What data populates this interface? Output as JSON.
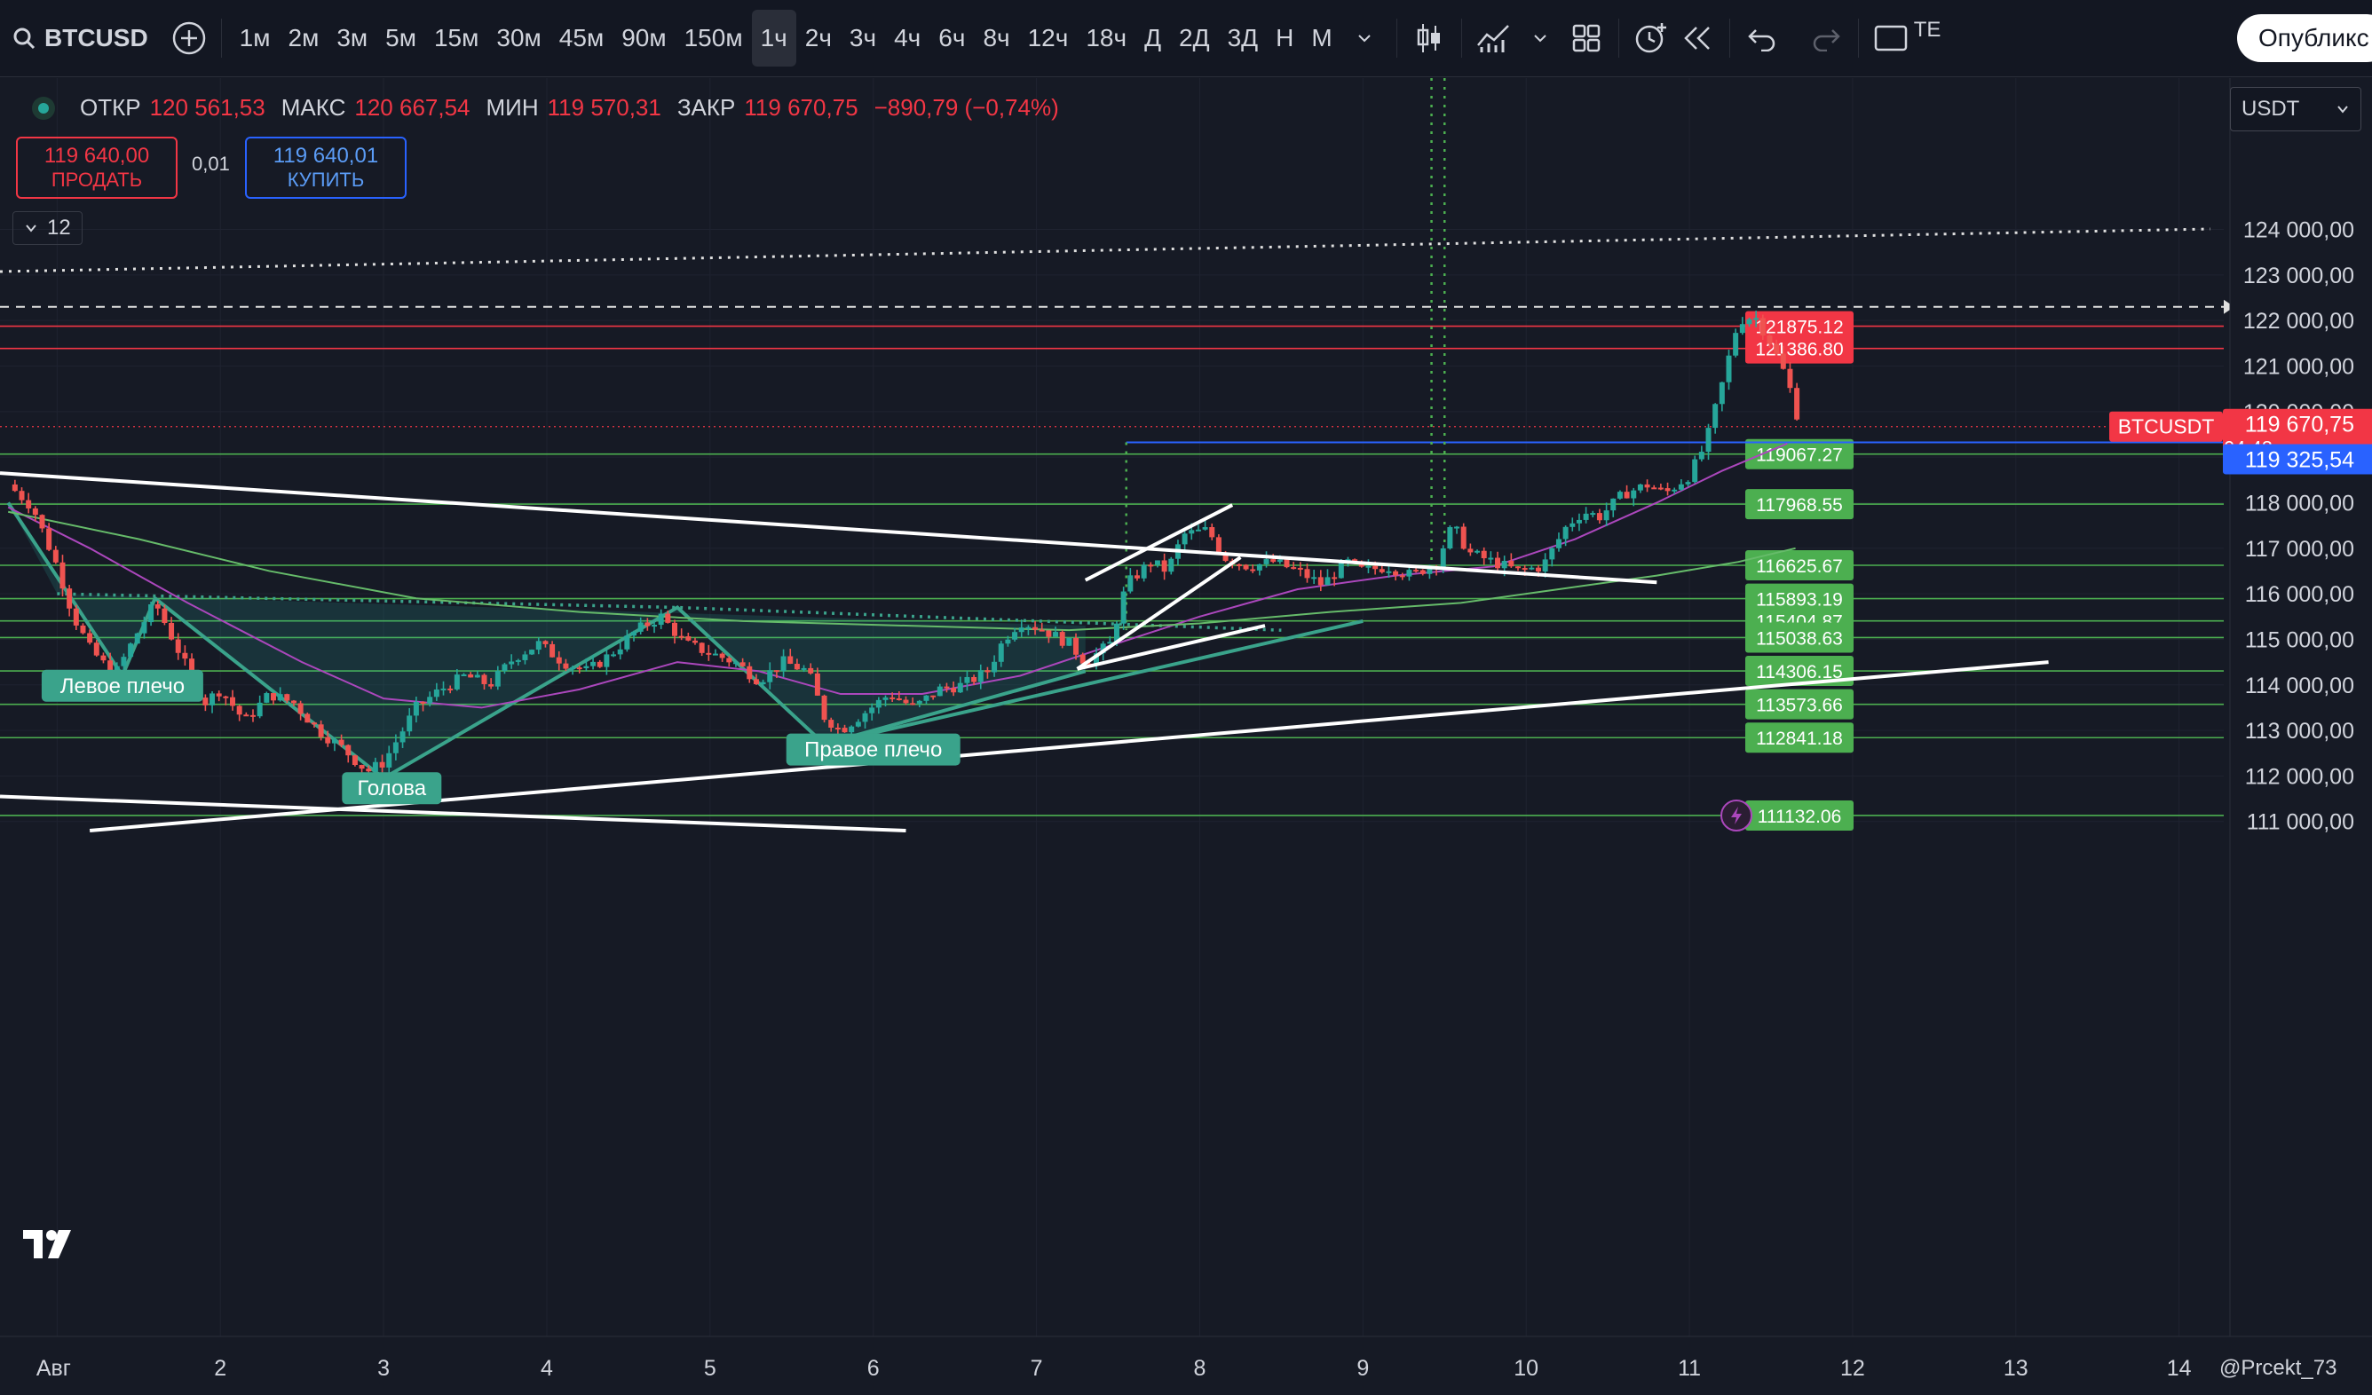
{
  "toolbar": {
    "symbol": "BTCUSD",
    "intervals": [
      "1м",
      "2м",
      "3м",
      "5м",
      "15м",
      "30м",
      "45м",
      "90м",
      "150м",
      "1ч",
      "2ч",
      "3ч",
      "4ч",
      "6ч",
      "8ч",
      "12ч",
      "18ч",
      "Д",
      "2Д",
      "3Д",
      "Н",
      "М"
    ],
    "active_interval": "1ч",
    "publish_label": "Опубликс",
    "text_tool_label": "TE"
  },
  "legend": {
    "open_label": "ОТКР",
    "open": "120 561,53",
    "high_label": "МАКС",
    "high": "120 667,54",
    "low_label": "МИН",
    "low": "119 570,31",
    "close_label": "ЗАКР",
    "close": "119 670,75",
    "change": "−890,79 (−0,74%)"
  },
  "trade": {
    "sell_price": "119 640,00",
    "sell_label": "ПРОДАТЬ",
    "spread": "0,01",
    "buy_price": "119 640,01",
    "buy_label": "КУПИТЬ"
  },
  "indicators_count": "12",
  "currency": "USDT",
  "author": "@Prcekt_73",
  "colors": {
    "background": "#161a25",
    "up": "#26a69a",
    "down": "#ef5350",
    "level_green": "#4caf50",
    "level_red": "#f23645",
    "accent_blue": "#2962ff"
  },
  "chart_data": {
    "type": "candlestick",
    "symbol": "BTCUSDT",
    "ylim": [
      110800,
      124400
    ],
    "y_ticks": [
      111000,
      112000,
      113000,
      114000,
      115000,
      116000,
      117000,
      118000,
      119000,
      120000,
      121000,
      122000,
      123000,
      124000
    ],
    "y_tick_labels": [
      "111 000,00",
      "112 000,00",
      "113 000,00",
      "114 000,00",
      "115 000,00",
      "116 000,00",
      "117 000,00",
      "118 000,00",
      "",
      "120 000,00",
      "121 000,00",
      "122 000,00",
      "123 000,00",
      "124 000,00"
    ],
    "x_labels": [
      "Авг",
      "2",
      "3",
      "4",
      "5",
      "6",
      "7",
      "8",
      "9",
      "10",
      "11",
      "12",
      "13",
      "14"
    ],
    "x_days": [
      1,
      2,
      3,
      4,
      5,
      6,
      7,
      8,
      9,
      10,
      11,
      12,
      13,
      14
    ],
    "xlim": [
      0.65,
      14.6
    ],
    "last_price": {
      "label": "BTCUSDT",
      "price": "119 670,75",
      "countdown": "04:48",
      "value": 119670.75
    },
    "blue_level": {
      "price": "119 325,54",
      "value": 119325.54
    },
    "levels": [
      {
        "value": 121875.12,
        "label": "121875.12",
        "color": "red"
      },
      {
        "value": 121386.8,
        "label": "121386.80",
        "color": "red"
      },
      {
        "value": 119067.27,
        "label": "119067.27",
        "color": "green"
      },
      {
        "value": 117968.55,
        "label": "117968.55",
        "color": "green"
      },
      {
        "value": 116625.67,
        "label": "116625.67",
        "color": "green"
      },
      {
        "value": 115893.19,
        "label": "115893.19",
        "color": "green"
      },
      {
        "value": 115404.87,
        "label": "115404.87",
        "color": "green"
      },
      {
        "value": 115038.63,
        "label": "115038.63",
        "color": "green"
      },
      {
        "value": 114306.15,
        "label": "114306.15",
        "color": "green"
      },
      {
        "value": 113573.66,
        "label": "113573.66",
        "color": "green"
      },
      {
        "value": 112841.18,
        "label": "112841.18",
        "color": "green"
      },
      {
        "value": 111132.06,
        "label": "111132.06",
        "color": "green"
      }
    ],
    "dashed_level": 122300,
    "annotations": [
      {
        "text": "Левое плечо",
        "x": 1.4,
        "y": 114000
      },
      {
        "text": "Голова",
        "x": 3.05,
        "y": 111750
      },
      {
        "text": "Правое плечо",
        "x": 6.0,
        "y": 112600
      }
    ],
    "close_path": [
      [
        0.7,
        118400
      ],
      [
        0.85,
        117900
      ],
      [
        1.0,
        116600
      ],
      [
        1.1,
        115500
      ],
      [
        1.2,
        114800
      ],
      [
        1.35,
        114200
      ],
      [
        1.5,
        115200
      ],
      [
        1.6,
        115800
      ],
      [
        1.75,
        114700
      ],
      [
        1.9,
        113600
      ],
      [
        2.0,
        113900
      ],
      [
        2.15,
        113200
      ],
      [
        2.3,
        113800
      ],
      [
        2.45,
        113600
      ],
      [
        2.6,
        113000
      ],
      [
        2.75,
        112600
      ],
      [
        2.9,
        112100
      ],
      [
        3.0,
        112300
      ],
      [
        3.1,
        112900
      ],
      [
        3.2,
        113500
      ],
      [
        3.35,
        113900
      ],
      [
        3.5,
        114200
      ],
      [
        3.65,
        114000
      ],
      [
        3.8,
        114600
      ],
      [
        3.95,
        114900
      ],
      [
        4.1,
        114500
      ],
      [
        4.25,
        114300
      ],
      [
        4.4,
        114700
      ],
      [
        4.55,
        115200
      ],
      [
        4.7,
        115500
      ],
      [
        4.85,
        114900
      ],
      [
        5.0,
        114700
      ],
      [
        5.15,
        114500
      ],
      [
        5.3,
        114100
      ],
      [
        5.45,
        114500
      ],
      [
        5.6,
        114300
      ],
      [
        5.7,
        113300
      ],
      [
        5.8,
        113000
      ],
      [
        5.95,
        113400
      ],
      [
        6.1,
        113800
      ],
      [
        6.25,
        113500
      ],
      [
        6.4,
        113900
      ],
      [
        6.55,
        114000
      ],
      [
        6.7,
        114300
      ],
      [
        6.8,
        115000
      ],
      [
        6.9,
        115400
      ],
      [
        7.05,
        115200
      ],
      [
        7.2,
        114900
      ],
      [
        7.3,
        114500
      ],
      [
        7.45,
        114900
      ],
      [
        7.55,
        116200
      ],
      [
        7.7,
        116700
      ],
      [
        7.8,
        116500
      ],
      [
        7.9,
        117300
      ],
      [
        8.05,
        117400
      ],
      [
        8.15,
        116800
      ],
      [
        8.3,
        116600
      ],
      [
        8.45,
        116700
      ],
      [
        8.6,
        116500
      ],
      [
        8.75,
        116200
      ],
      [
        8.9,
        116700
      ],
      [
        9.0,
        116500
      ],
      [
        9.15,
        116600
      ],
      [
        9.3,
        116400
      ],
      [
        9.45,
        116700
      ],
      [
        9.55,
        117500
      ],
      [
        9.65,
        116900
      ],
      [
        9.8,
        116700
      ],
      [
        9.95,
        116500
      ],
      [
        10.1,
        116600
      ],
      [
        10.25,
        117500
      ],
      [
        10.35,
        117800
      ],
      [
        10.45,
        117700
      ],
      [
        10.6,
        118200
      ],
      [
        10.75,
        118400
      ],
      [
        10.85,
        118200
      ],
      [
        11.0,
        118600
      ],
      [
        11.1,
        119300
      ],
      [
        11.2,
        120600
      ],
      [
        11.3,
        122000
      ],
      [
        11.4,
        122100
      ],
      [
        11.5,
        121500
      ],
      [
        11.6,
        120700
      ],
      [
        11.68,
        119671
      ]
    ]
  }
}
